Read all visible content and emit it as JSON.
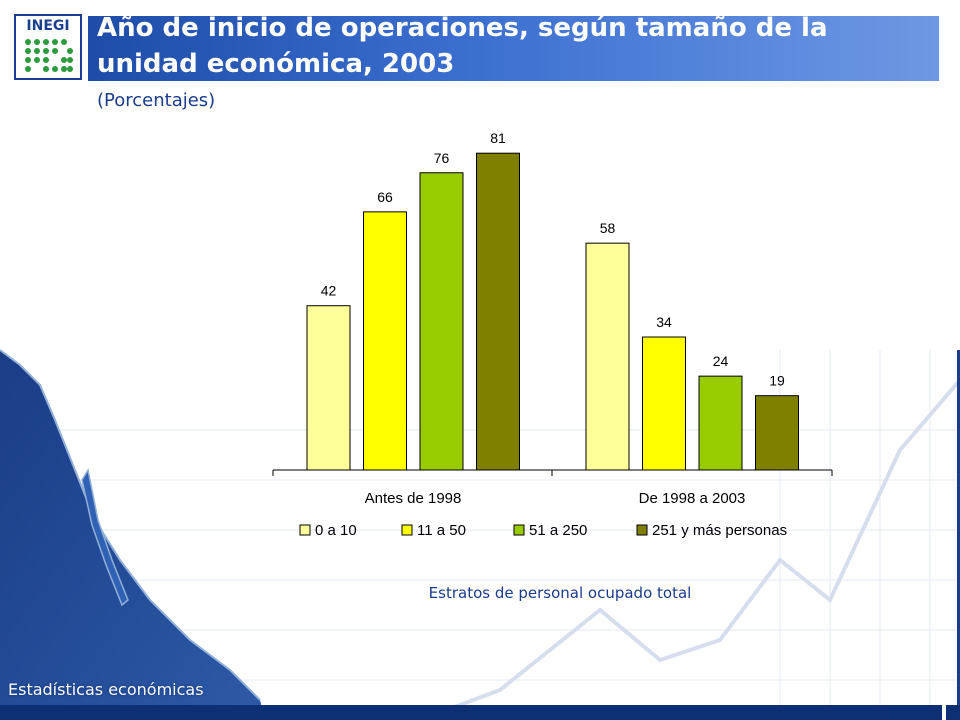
{
  "header": {
    "logo_text": "INEGI",
    "title": "Año de inicio de operaciones, según tamaño de la unidad económica, 2003",
    "subtitle": "(Porcentajes)"
  },
  "footer": {
    "label": "Estadísticas económicas"
  },
  "colors": {
    "title_bar": "#2f62c4",
    "text_blue": "#1b3c8c",
    "footer": "#0d2f73"
  },
  "chart_data": {
    "type": "bar",
    "title": "",
    "xlabel": "Estratos de personal ocupado total",
    "ylabel": "",
    "ylim": [
      0,
      90
    ],
    "grid": false,
    "legend_position": "bottom",
    "categories": [
      "Antes de 1998",
      "De 1998 a 2003"
    ],
    "series": [
      {
        "name": "0 a 10",
        "color": "#ffff99",
        "values": [
          42,
          58
        ]
      },
      {
        "name": "11 a 50",
        "color": "#ffff00",
        "values": [
          66,
          34
        ]
      },
      {
        "name": "51 a 250",
        "color": "#99cc00",
        "values": [
          76,
          24
        ]
      },
      {
        "name": "251 y más personas",
        "color": "#808000",
        "values": [
          81,
          19
        ]
      }
    ]
  }
}
